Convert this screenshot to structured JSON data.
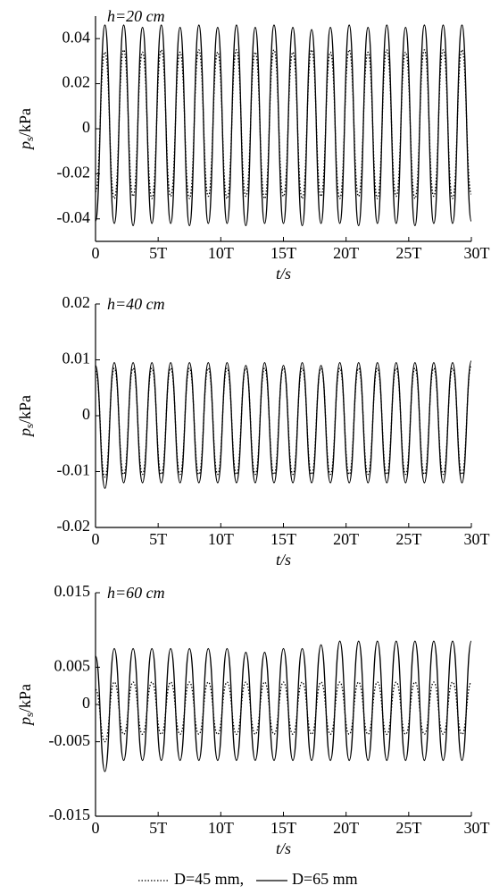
{
  "chart_data": [
    {
      "type": "line",
      "annotation": "h=20 cm",
      "y_label": {
        "symbol": "p",
        "sub": "s",
        "unit": "/kPa"
      },
      "x_label": "t/s",
      "x": [
        0,
        0.75,
        1.5,
        2.25,
        3,
        3.75,
        4.5,
        5.25,
        6,
        6.75,
        7.5,
        8.25,
        9,
        9.75,
        10.5,
        11.25,
        12,
        12.75,
        13.5,
        14.25,
        15,
        15.75,
        16.5,
        17.25,
        18,
        18.75,
        19.5,
        20.25,
        21,
        21.75,
        22.5,
        23.25,
        24,
        24.75,
        25.5,
        26.25,
        27,
        27.75,
        28.5,
        29.25,
        30
      ],
      "xlim": [
        0,
        30
      ],
      "xticks": [
        0,
        {
          "value": 5,
          "label": "5T"
        },
        {
          "value": 10,
          "label": "10T"
        },
        {
          "value": 15,
          "label": "15T"
        },
        {
          "value": 20,
          "label": "20T"
        },
        {
          "value": 25,
          "label": "25T"
        },
        {
          "value": 30,
          "label": "30T"
        }
      ],
      "ylim": [
        -0.05,
        0.05
      ],
      "yticks": [
        -0.04,
        -0.02,
        0,
        0.02,
        0.04
      ],
      "series": [
        {
          "name": "D=45 mm,",
          "color": "#000000",
          "dash": "dotted",
          "values": [
            -0.028,
            0.034,
            -0.031,
            0.035,
            -0.03,
            0.034,
            -0.031,
            0.035,
            -0.03,
            0.034,
            -0.031,
            0.035,
            -0.03,
            0.034,
            -0.031,
            0.035,
            -0.03,
            0.034,
            -0.031,
            0.035,
            -0.03,
            0.034,
            -0.031,
            0.035,
            -0.03,
            0.034,
            -0.031,
            0.035,
            -0.03,
            0.034,
            -0.031,
            0.035,
            -0.03,
            0.034,
            -0.031,
            0.035,
            -0.03,
            0.035,
            -0.031,
            0.035,
            -0.029
          ]
        },
        {
          "name": "D=65 mm",
          "color": "#000000",
          "dash": "solid",
          "values": [
            -0.041,
            0.046,
            -0.042,
            0.046,
            -0.043,
            0.045,
            -0.042,
            0.046,
            -0.042,
            0.045,
            -0.043,
            0.046,
            -0.042,
            0.045,
            -0.042,
            0.046,
            -0.043,
            0.045,
            -0.042,
            0.046,
            -0.042,
            0.045,
            -0.043,
            0.044,
            -0.042,
            0.045,
            -0.042,
            0.046,
            -0.043,
            0.045,
            -0.042,
            0.046,
            -0.042,
            0.045,
            -0.043,
            0.046,
            -0.042,
            0.046,
            -0.042,
            0.046,
            -0.041
          ]
        }
      ]
    },
    {
      "type": "line",
      "annotation": "h=40 cm",
      "y_label": {
        "symbol": "p",
        "sub": "s",
        "unit": "/kPa"
      },
      "x_label": "t/s",
      "x": [
        0,
        0.75,
        1.5,
        2.25,
        3,
        3.75,
        4.5,
        5.25,
        6,
        6.75,
        7.5,
        8.25,
        9,
        9.75,
        10.5,
        11.25,
        12,
        12.75,
        13.5,
        14.25,
        15,
        15.75,
        16.5,
        17.25,
        18,
        18.75,
        19.5,
        20.25,
        21,
        21.75,
        22.5,
        23.25,
        24,
        24.75,
        25.5,
        26.25,
        27,
        27.75,
        28.5,
        29.25,
        30
      ],
      "xlim": [
        0,
        30
      ],
      "xticks": [
        0,
        {
          "value": 5,
          "label": "5T"
        },
        {
          "value": 10,
          "label": "10T"
        },
        {
          "value": 15,
          "label": "15T"
        },
        {
          "value": 20,
          "label": "20T"
        },
        {
          "value": 25,
          "label": "25T"
        },
        {
          "value": 30,
          "label": "30T"
        }
      ],
      "ylim": [
        -0.02,
        0.02
      ],
      "yticks": [
        -0.02,
        -0.01,
        0,
        0.01,
        0.02
      ],
      "series": [
        {
          "color": "#000000",
          "dash": "dotted",
          "values": [
            0.008,
            -0.011,
            0.0085,
            -0.0105,
            0.0085,
            -0.0105,
            0.0085,
            -0.0105,
            0.0085,
            -0.0105,
            0.0085,
            -0.0105,
            0.0085,
            -0.0105,
            0.0085,
            -0.0105,
            0.0085,
            -0.0105,
            0.0085,
            -0.0105,
            0.0085,
            -0.0105,
            0.0085,
            -0.0105,
            0.0085,
            -0.0105,
            0.0085,
            -0.0105,
            0.0085,
            -0.0105,
            0.0085,
            -0.0105,
            0.0085,
            -0.0105,
            0.0085,
            -0.0105,
            0.0085,
            -0.0105,
            0.0085,
            -0.0105,
            0.009
          ]
        },
        {
          "color": "#000000",
          "dash": "solid",
          "values": [
            0.009,
            -0.013,
            0.0095,
            -0.012,
            0.0095,
            -0.012,
            0.0095,
            -0.012,
            0.0095,
            -0.012,
            0.0095,
            -0.012,
            0.0095,
            -0.012,
            0.0095,
            -0.012,
            0.009,
            -0.012,
            0.0095,
            -0.012,
            0.009,
            -0.012,
            0.0095,
            -0.012,
            0.009,
            -0.012,
            0.0095,
            -0.012,
            0.0095,
            -0.012,
            0.0095,
            -0.012,
            0.0095,
            -0.012,
            0.0095,
            -0.012,
            0.0095,
            -0.012,
            0.0095,
            -0.012,
            0.0098
          ]
        }
      ]
    },
    {
      "type": "line",
      "annotation": "h=60 cm",
      "y_label": {
        "symbol": "p",
        "sub": "s",
        "unit": "/kPa"
      },
      "x_label": "t/s",
      "x": [
        0,
        0.75,
        1.5,
        2.25,
        3,
        3.75,
        4.5,
        5.25,
        6,
        6.75,
        7.5,
        8.25,
        9,
        9.75,
        10.5,
        11.25,
        12,
        12.75,
        13.5,
        14.25,
        15,
        15.75,
        16.5,
        17.25,
        18,
        18.75,
        19.5,
        20.25,
        21,
        21.75,
        22.5,
        23.25,
        24,
        24.75,
        25.5,
        26.25,
        27,
        27.75,
        28.5,
        29.25,
        30
      ],
      "xlim": [
        0,
        30
      ],
      "xticks": [
        0,
        {
          "value": 5,
          "label": "5T"
        },
        {
          "value": 10,
          "label": "10T"
        },
        {
          "value": 15,
          "label": "15T"
        },
        {
          "value": 20,
          "label": "20T"
        },
        {
          "value": 25,
          "label": "25T"
        },
        {
          "value": 30,
          "label": "30T"
        }
      ],
      "ylim": [
        -0.015,
        0.015
      ],
      "yticks": [
        -0.015,
        -0.005,
        0,
        0.005,
        0.015
      ],
      "series": [
        {
          "color": "#000000",
          "dash": "dotted",
          "values": [
            0.002,
            -0.005,
            0.003,
            -0.004,
            0.003,
            -0.004,
            0.003,
            -0.004,
            0.003,
            -0.004,
            0.003,
            -0.004,
            0.003,
            -0.004,
            0.003,
            -0.004,
            0.003,
            -0.004,
            0.003,
            -0.004,
            0.003,
            -0.004,
            0.003,
            -0.004,
            0.003,
            -0.004,
            0.003,
            -0.004,
            0.003,
            -0.004,
            0.003,
            -0.004,
            0.003,
            -0.004,
            0.003,
            -0.004,
            0.003,
            -0.004,
            0.003,
            -0.004,
            0.003
          ]
        },
        {
          "color": "#000000",
          "dash": "solid",
          "values": [
            0.0065,
            -0.009,
            0.0075,
            -0.0075,
            0.0075,
            -0.0075,
            0.0075,
            -0.0075,
            0.0075,
            -0.0075,
            0.0075,
            -0.0075,
            0.0075,
            -0.0075,
            0.0075,
            -0.0075,
            0.007,
            -0.0075,
            0.007,
            -0.0075,
            0.0075,
            -0.0075,
            0.0075,
            -0.0075,
            0.008,
            -0.0075,
            0.0085,
            -0.0075,
            0.0085,
            -0.0075,
            0.0085,
            -0.0075,
            0.0085,
            -0.0075,
            0.0085,
            -0.0075,
            0.0085,
            -0.0075,
            0.0085,
            -0.0075,
            0.0085
          ]
        }
      ]
    }
  ]
}
